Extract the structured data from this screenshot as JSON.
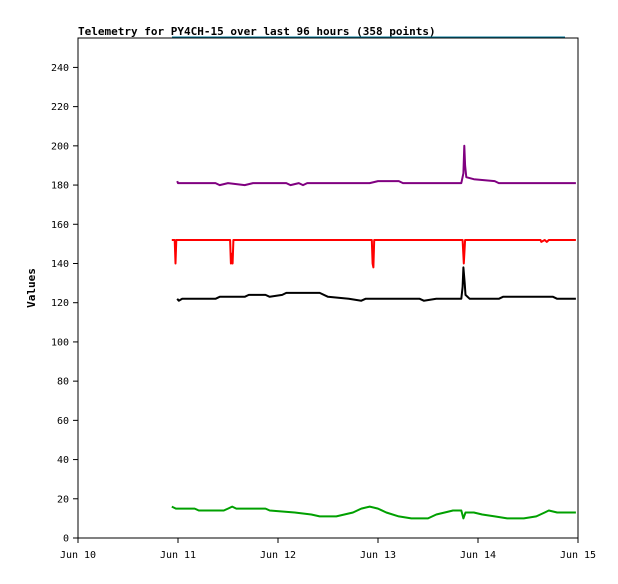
{
  "chart_data": {
    "type": "line",
    "title": "Telemetry for PY4CH-15 over last 96 hours (358 points)",
    "xlabel": "",
    "ylabel": "Values",
    "x_unit": "hours after Jun 10 00:00",
    "xlim": [
      0,
      120
    ],
    "ylim": [
      0,
      255
    ],
    "x_ticks": [
      {
        "value": 0,
        "label": "Jun 10"
      },
      {
        "value": 24,
        "label": "Jun 11"
      },
      {
        "value": 48,
        "label": "Jun 12"
      },
      {
        "value": 72,
        "label": "Jun 13"
      },
      {
        "value": 96,
        "label": "Jun 14"
      },
      {
        "value": 120,
        "label": "Jun 15"
      }
    ],
    "y_ticks": [
      0,
      20,
      40,
      60,
      80,
      100,
      120,
      140,
      160,
      180,
      200,
      220,
      240
    ],
    "grid": false,
    "legend": "none",
    "series": [
      {
        "color": "#800080",
        "points": [
          [
            23.8,
            182
          ],
          [
            24.0,
            181
          ],
          [
            33,
            181
          ],
          [
            34,
            180
          ],
          [
            36,
            181
          ],
          [
            40,
            180
          ],
          [
            42,
            181
          ],
          [
            50,
            181
          ],
          [
            51,
            180
          ],
          [
            53,
            181
          ],
          [
            54,
            180
          ],
          [
            55,
            181
          ],
          [
            70,
            181
          ],
          [
            72,
            182
          ],
          [
            77,
            182
          ],
          [
            78,
            181
          ],
          [
            92,
            181
          ],
          [
            92.5,
            186
          ],
          [
            92.7,
            200
          ],
          [
            92.9,
            190
          ],
          [
            93.2,
            184
          ],
          [
            95,
            183
          ],
          [
            100,
            182
          ],
          [
            101,
            181
          ],
          [
            119.5,
            181
          ]
        ]
      },
      {
        "color": "#ff0000",
        "points": [
          [
            22.5,
            152
          ],
          [
            23.2,
            152
          ],
          [
            23.4,
            140
          ],
          [
            23.6,
            152
          ],
          [
            36.5,
            152
          ],
          [
            36.7,
            140
          ],
          [
            36.9,
            145
          ],
          [
            37.1,
            140
          ],
          [
            37.3,
            152
          ],
          [
            70.5,
            152
          ],
          [
            70.7,
            140
          ],
          [
            70.9,
            138
          ],
          [
            71.1,
            152
          ],
          [
            92.3,
            152
          ],
          [
            92.6,
            140
          ],
          [
            92.9,
            152
          ],
          [
            111,
            152
          ],
          [
            111.2,
            151
          ],
          [
            112,
            152
          ],
          [
            112.5,
            151
          ],
          [
            113,
            152
          ],
          [
            119.5,
            152
          ]
        ]
      },
      {
        "color": "#000000",
        "points": [
          [
            23.8,
            122
          ],
          [
            24.2,
            121
          ],
          [
            25,
            122
          ],
          [
            33,
            122
          ],
          [
            34,
            123
          ],
          [
            40,
            123
          ],
          [
            41,
            124
          ],
          [
            45,
            124
          ],
          [
            46,
            123
          ],
          [
            49,
            124
          ],
          [
            50,
            125
          ],
          [
            58,
            125
          ],
          [
            60,
            123
          ],
          [
            65,
            122
          ],
          [
            68,
            121
          ],
          [
            69,
            122
          ],
          [
            82,
            122
          ],
          [
            83,
            121
          ],
          [
            86,
            122
          ],
          [
            92,
            122
          ],
          [
            92.3,
            128
          ],
          [
            92.5,
            138
          ],
          [
            92.8,
            130
          ],
          [
            93,
            124
          ],
          [
            94,
            122
          ],
          [
            101,
            122
          ],
          [
            102,
            123
          ],
          [
            114,
            123
          ],
          [
            115,
            122
          ],
          [
            119.5,
            122
          ]
        ]
      },
      {
        "color": "#00a000",
        "points": [
          [
            22.5,
            16
          ],
          [
            23.5,
            15
          ],
          [
            28,
            15
          ],
          [
            29,
            14
          ],
          [
            35,
            14
          ],
          [
            36,
            15
          ],
          [
            37,
            16
          ],
          [
            38,
            15
          ],
          [
            45,
            15
          ],
          [
            46,
            14
          ],
          [
            52,
            13
          ],
          [
            56,
            12
          ],
          [
            58,
            11
          ],
          [
            62,
            11
          ],
          [
            66,
            13
          ],
          [
            68,
            15
          ],
          [
            70,
            16
          ],
          [
            72,
            15
          ],
          [
            74,
            13
          ],
          [
            77,
            11
          ],
          [
            80,
            10
          ],
          [
            84,
            10
          ],
          [
            86,
            12
          ],
          [
            88,
            13
          ],
          [
            90,
            14
          ],
          [
            92,
            14
          ],
          [
            92.5,
            10
          ],
          [
            93,
            13
          ],
          [
            95,
            13
          ],
          [
            97,
            12
          ],
          [
            100,
            11
          ],
          [
            103,
            10
          ],
          [
            107,
            10
          ],
          [
            110,
            11
          ],
          [
            112,
            13
          ],
          [
            113,
            14
          ],
          [
            115,
            13
          ],
          [
            119.5,
            13
          ]
        ]
      }
    ]
  }
}
